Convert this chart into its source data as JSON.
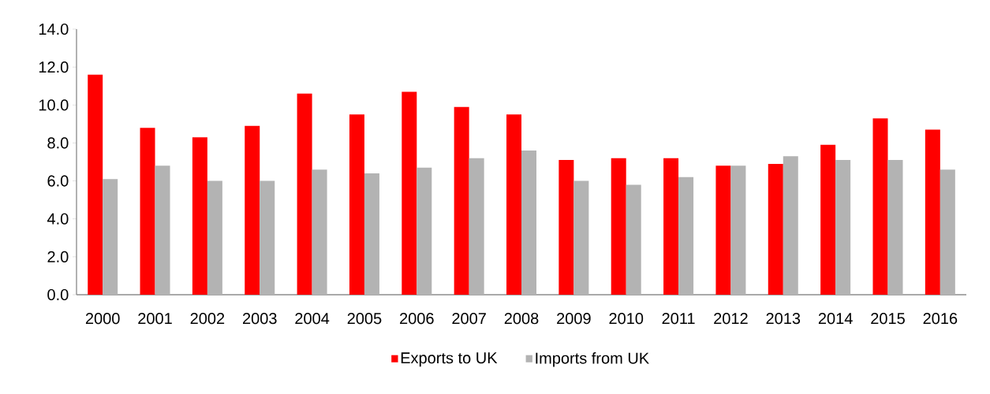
{
  "chart_data": {
    "type": "bar",
    "categories": [
      "2000",
      "2001",
      "2002",
      "2003",
      "2004",
      "2005",
      "2006",
      "2007",
      "2008",
      "2009",
      "2010",
      "2011",
      "2012",
      "2013",
      "2014",
      "2015",
      "2016"
    ],
    "series": [
      {
        "name": "Exports to UK",
        "color": "#ff0000",
        "values": [
          11.6,
          8.8,
          8.3,
          8.9,
          10.6,
          9.5,
          10.7,
          9.9,
          9.5,
          7.1,
          7.2,
          7.2,
          6.8,
          6.9,
          7.9,
          9.3,
          8.7
        ]
      },
      {
        "name": "Imports from UK",
        "color": "#b3b3b3",
        "values": [
          6.1,
          6.8,
          6.0,
          6.0,
          6.6,
          6.4,
          6.7,
          7.2,
          7.6,
          6.0,
          5.8,
          6.2,
          6.8,
          7.3,
          7.1,
          7.1,
          6.6
        ]
      }
    ],
    "ylim": [
      0,
      14
    ],
    "yticks": [
      {
        "value": 0,
        "label": "0.0"
      },
      {
        "value": 2,
        "label": "2.0"
      },
      {
        "value": 4,
        "label": "4.0"
      },
      {
        "value": 6,
        "label": "6.0"
      },
      {
        "value": 8,
        "label": "8.0"
      },
      {
        "value": 10,
        "label": "10.0"
      },
      {
        "value": 12,
        "label": "12.0"
      },
      {
        "value": 14,
        "label": "14.0"
      }
    ],
    "grid": false,
    "legend": "bottom"
  }
}
